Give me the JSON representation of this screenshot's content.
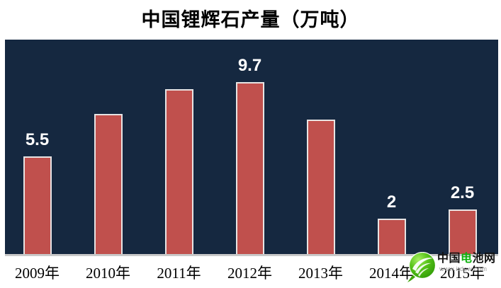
{
  "title": "中国锂辉石产量（万吨）",
  "chart_data": {
    "type": "bar",
    "title": "中国锂辉石产量（万吨）",
    "categories": [
      "2009年",
      "2010年",
      "2011年",
      "2012年",
      "2013年",
      "2014年",
      "2015年"
    ],
    "values": [
      5.5,
      7.9,
      9.3,
      9.7,
      7.6,
      2,
      2.5
    ],
    "data_labels": [
      "5.5",
      "",
      "",
      "9.7",
      "",
      "2",
      "2.5"
    ],
    "xlabel": "",
    "ylabel": "",
    "ylim": [
      0,
      12.1
    ],
    "grid": false,
    "legend": false,
    "plot_bg": "#152840",
    "bar_color": "#c0504d",
    "bar_border_color": "#e7e4e4",
    "axis_line_color": "#c9c9c9",
    "data_label_color": "#ffffff"
  },
  "watermark": {
    "site_name_prefix": "中国",
    "site_name_green": "电",
    "site_name_suffix": "池网",
    "site_url": "www.itdcw.com",
    "icon": "leaf-swoosh-logo",
    "icon_green": "#3fa50a",
    "icon_green_light": "#8fe04c"
  }
}
